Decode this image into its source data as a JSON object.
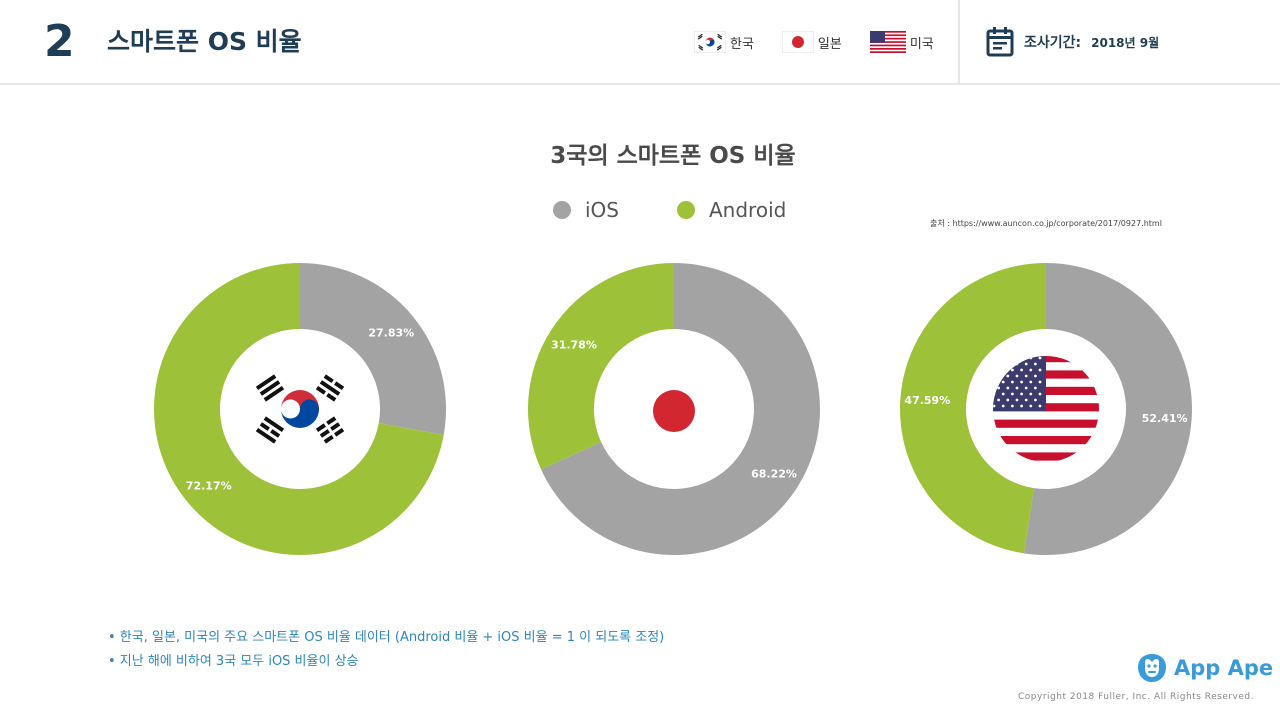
{
  "header": {
    "slide_number": "2",
    "title": "스마트폰 OS 비율",
    "legend": [
      {
        "label": "한국",
        "flag": "korea-flag-icon"
      },
      {
        "label": "일본",
        "flag": "japan-flag-icon"
      },
      {
        "label": "미국",
        "flag": "usa-flag-icon"
      }
    ],
    "period_label": "조사기간:",
    "period_value": "2018년 9월"
  },
  "chart_data": {
    "type": "pie",
    "title": "3국의 스마트폰 OS 비율",
    "legend": [
      {
        "name": "iOS",
        "color": "#a3a3a3"
      },
      {
        "name": "Android",
        "color": "#9dc23a"
      }
    ],
    "legend_placement": "top-center",
    "source": "출처 : https://www.auncon.co.jp/corporate/2017/0927.html",
    "charts": [
      {
        "country": "한국",
        "flag": "korea-flag-icon",
        "ios": 27.83,
        "android": 72.17,
        "ios_label": "27.83%",
        "android_label": "72.17%"
      },
      {
        "country": "일본",
        "flag": "japan-flag-icon",
        "ios": 68.22,
        "android": 31.78,
        "ios_label": "68.22%",
        "android_label": "31.78%"
      },
      {
        "country": "미국",
        "flag": "usa-flag-icon",
        "ios": 52.41,
        "android": 47.59,
        "ios_label": "52.41%",
        "android_label": "47.59%"
      }
    ]
  },
  "notes": [
    "• 한국, 일본, 미국의 주요 스마트폰 OS 비율 데이터 (Android 비율 + iOS 비율 = 1 이 되도록 조정)",
    "• 지난 해에 비하여 3국 모두 iOS 비율이 상승"
  ],
  "footer": {
    "brand": "App Ape",
    "brand_icon": "app-ape-logo-icon",
    "copyright": "Copyright 2018 Fuller, Inc. All Rights Reserved."
  }
}
